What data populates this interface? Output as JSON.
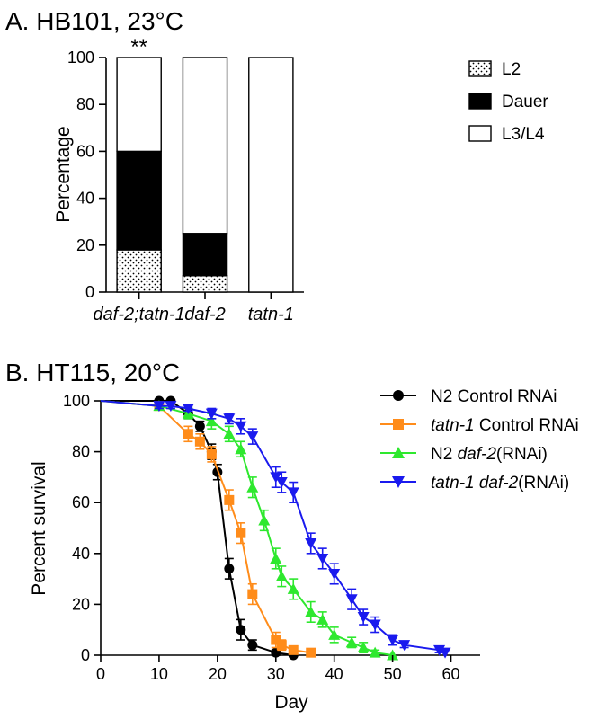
{
  "chart_data": [
    {
      "type": "bar",
      "stacked": true,
      "title": "A. HB101, 23°C",
      "ylabel": "Percentage",
      "xlabel": "",
      "ylim": [
        0,
        100
      ],
      "yticks": [
        "0",
        "20",
        "40",
        "60",
        "80",
        "100"
      ],
      "categories": [
        "daf-2;tatn-1",
        "daf-2",
        "tatn-1"
      ],
      "series": [
        {
          "name": "L2",
          "values": [
            18,
            7,
            0
          ],
          "fill": "dotted"
        },
        {
          "name": "Dauer",
          "values": [
            42,
            18,
            0
          ],
          "fill": "#000000"
        },
        {
          "name": "L3/L4",
          "values": [
            40,
            75,
            100
          ],
          "fill": "#ffffff"
        }
      ],
      "annotations": [
        {
          "category": "daf-2;tatn-1",
          "text": "**"
        }
      ],
      "legend_position": "right"
    },
    {
      "type": "line",
      "title": "B. HT115, 20°C",
      "xlabel": "Day",
      "ylabel": "Percent survival",
      "xlim": [
        0,
        65
      ],
      "ylim": [
        0,
        100
      ],
      "xticks": [
        "0",
        "10",
        "20",
        "30",
        "40",
        "50",
        "60"
      ],
      "yticks": [
        "0",
        "20",
        "40",
        "60",
        "80",
        "100"
      ],
      "legend_position": "top-right",
      "series": [
        {
          "name": "N2 Control RNAi",
          "legend_parts": [
            {
              "text": "N2 Control RNAi",
              "italic": false
            }
          ],
          "color": "#000000",
          "marker": "circle",
          "x": [
            0,
            10,
            12,
            15,
            17,
            19,
            20,
            22,
            24,
            26,
            30,
            33
          ],
          "y": [
            100,
            100,
            100,
            95,
            90,
            80,
            72,
            34,
            10,
            4,
            1,
            0
          ],
          "err": [
            0,
            1,
            1,
            2,
            2,
            3,
            3,
            4,
            4,
            2,
            1,
            0
          ]
        },
        {
          "name": "tatn-1 Control RNAi",
          "legend_parts": [
            {
              "text": "tatn-1",
              "italic": true
            },
            {
              "text": " Control RNAi",
              "italic": false
            }
          ],
          "color": "#ff8c1a",
          "marker": "square",
          "x": [
            0,
            10,
            15,
            17,
            19,
            22,
            24,
            26,
            30,
            31,
            33,
            36
          ],
          "y": [
            100,
            98,
            87,
            84,
            79,
            61,
            48,
            24,
            6,
            4,
            2,
            1
          ],
          "err": [
            0,
            1,
            3,
            3,
            3,
            4,
            4,
            4,
            3,
            2,
            1,
            0
          ]
        },
        {
          "name": "N2 daf-2(RNAi)",
          "legend_parts": [
            {
              "text": "N2 ",
              "italic": false
            },
            {
              "text": "daf-2",
              "italic": true
            },
            {
              "text": "(RNAi)",
              "italic": false
            }
          ],
          "color": "#2ee82e",
          "marker": "triangle-up",
          "x": [
            0,
            10,
            15,
            19,
            22,
            24,
            26,
            28,
            30,
            31,
            33,
            36,
            38,
            40,
            43,
            45,
            47,
            50
          ],
          "y": [
            100,
            98,
            95,
            92,
            87,
            81,
            66,
            53,
            38,
            31,
            26,
            17,
            14,
            8,
            5,
            3,
            1,
            0
          ],
          "err": [
            0,
            1,
            2,
            3,
            3,
            3,
            4,
            4,
            4,
            4,
            4,
            4,
            3,
            3,
            2,
            2,
            1,
            0
          ]
        },
        {
          "name": "tatn-1 daf-2(RNAi)",
          "legend_parts": [
            {
              "text": "tatn-1 daf-2",
              "italic": true
            },
            {
              "text": "(RNAi)",
              "italic": false
            }
          ],
          "color": "#1a1aee",
          "marker": "triangle-down",
          "x": [
            0,
            10,
            12,
            15,
            19,
            22,
            24,
            26,
            30,
            31,
            33,
            36,
            38,
            40,
            43,
            45,
            47,
            50,
            52,
            58,
            59
          ],
          "y": [
            100,
            98,
            98,
            97,
            95,
            93,
            90,
            86,
            70,
            68,
            64,
            44,
            38,
            32,
            22,
            15,
            12,
            6,
            4,
            2,
            1
          ],
          "err": [
            0,
            1,
            1,
            1,
            2,
            2,
            3,
            3,
            4,
            4,
            4,
            4,
            4,
            4,
            4,
            3,
            3,
            2,
            1,
            1,
            0
          ]
        }
      ]
    }
  ]
}
